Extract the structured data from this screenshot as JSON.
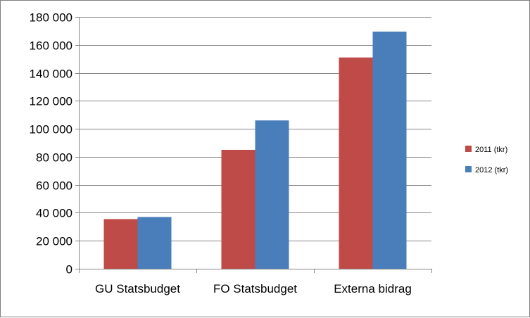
{
  "chart_data": {
    "type": "bar",
    "title": "",
    "xlabel": "",
    "ylabel": "",
    "categories": [
      "GU Statsbudget",
      "FO Statsbudget",
      "Externa bidrag"
    ],
    "series": [
      {
        "name": "2011 (tkr)",
        "color": "#be4b48",
        "values": [
          35500,
          85000,
          151000
        ]
      },
      {
        "name": "2012 (tkr)",
        "color": "#4a7ebb",
        "values": [
          37000,
          106000,
          169500
        ]
      }
    ],
    "ylim": [
      0,
      180000
    ],
    "yticks": [
      0,
      20000,
      40000,
      60000,
      80000,
      100000,
      120000,
      140000,
      160000,
      180000
    ],
    "ytick_labels": [
      "0",
      "20 000",
      "40 000",
      "60 000",
      "80 000",
      "100 000",
      "120 000",
      "140 000",
      "160 000",
      "180 000"
    ],
    "grid": true,
    "legend_position": "right"
  }
}
